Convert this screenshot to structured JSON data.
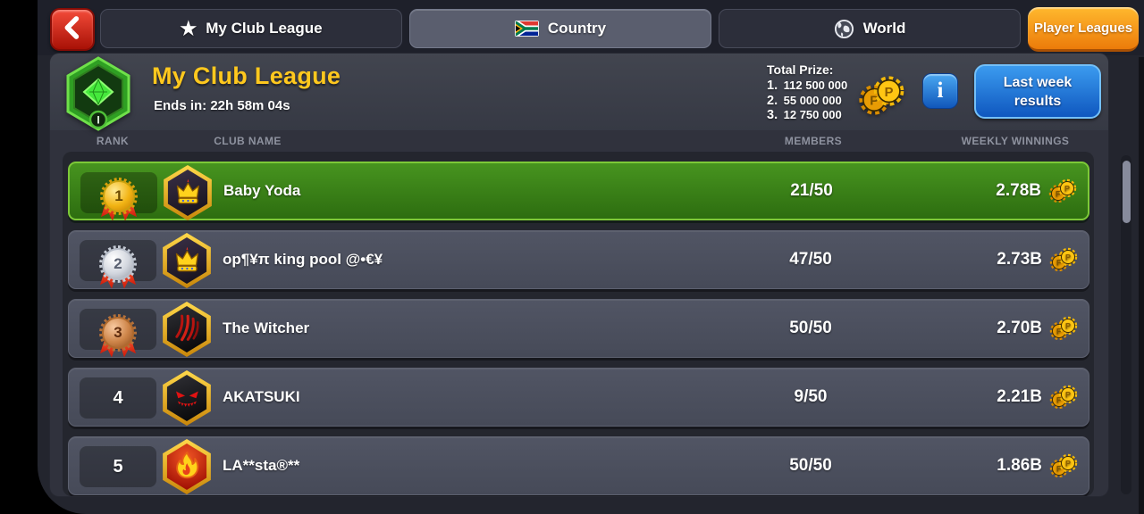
{
  "topbar": {
    "tabs": [
      {
        "label": "My Club League",
        "icon": "star-icon"
      },
      {
        "label": "Country",
        "icon": "south-africa-flag-icon"
      },
      {
        "label": "World",
        "icon": "globe-icon"
      }
    ],
    "player_leagues_label": "Player Leagues"
  },
  "header": {
    "title": "My Club League",
    "ends_in": "Ends in: 22h 58m 04s",
    "total_prize_label": "Total Prize:",
    "prizes": [
      {
        "rank": "1.",
        "amount": "112 500 000"
      },
      {
        "rank": "2.",
        "amount": "55 000 000"
      },
      {
        "rank": "3.",
        "amount": "12 750 000"
      }
    ],
    "info_label": "i",
    "last_week_results_label": "Last week results",
    "emblem_icon": "green-league-emblem-icon",
    "prize_icon": "pool-chips-icon"
  },
  "table": {
    "columns": [
      "RANK",
      "CLUB NAME",
      "MEMBERS",
      "WEEKLY WINNINGS"
    ],
    "rows": [
      {
        "rank": "1",
        "medal": "gold",
        "badge_icon": "crown-badge-icon",
        "name": "Baby Yoda",
        "members": "21/50",
        "winnings": "2.78B",
        "highlighted": true
      },
      {
        "rank": "2",
        "medal": "silver",
        "badge_icon": "crown-badge-icon",
        "name": "op¶¥π king pool @•€¥",
        "members": "47/50",
        "winnings": "2.73B",
        "highlighted": false
      },
      {
        "rank": "3",
        "medal": "bronze",
        "badge_icon": "claw-badge-icon",
        "name": "The Witcher",
        "members": "50/50",
        "winnings": "2.70B",
        "highlighted": false
      },
      {
        "rank": "4",
        "medal": null,
        "badge_icon": "demon-badge-icon",
        "name": "AKATSUKI",
        "members": "9/50",
        "winnings": "2.21B",
        "highlighted": false
      },
      {
        "rank": "5",
        "medal": null,
        "badge_icon": "flame-badge-icon",
        "name": "LA**sta®**",
        "members": "50/50",
        "winnings": "1.86B",
        "highlighted": false
      }
    ]
  },
  "colors": {
    "accent_orange": "#ec7b0a",
    "accent_blue": "#1e78d7",
    "highlight_green": "#3c8a1b",
    "title_yellow": "#ffc81e",
    "row_gray": "#4b4e5d",
    "back_red": "#c81f10"
  }
}
